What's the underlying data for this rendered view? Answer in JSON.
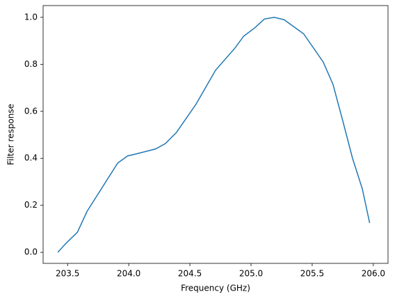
{
  "chart_data": {
    "type": "line",
    "x_label": "Frequency (GHz)",
    "y_label": "Filter response",
    "x": [
      203.42,
      203.49,
      203.58,
      203.66,
      203.91,
      203.99,
      204.07,
      204.22,
      204.3,
      204.39,
      204.55,
      204.71,
      204.87,
      204.94,
      205.03,
      205.11,
      205.19,
      205.27,
      205.43,
      205.59,
      205.67,
      205.75,
      205.83,
      205.91,
      205.97
    ],
    "series": [
      {
        "color": "#1f77b4",
        "values": [
          0.0,
          0.04,
          0.085,
          0.175,
          0.38,
          0.41,
          0.42,
          0.44,
          0.463,
          0.51,
          0.63,
          0.775,
          0.87,
          0.92,
          0.955,
          0.993,
          1.0,
          0.99,
          0.93,
          0.81,
          0.715,
          0.56,
          0.4,
          0.27,
          0.125
        ]
      }
    ],
    "xlim": [
      203.3,
      206.12
    ],
    "ylim": [
      -0.047,
      1.05
    ],
    "xticks": [
      {
        "value": 203.5,
        "label": "203.5"
      },
      {
        "value": 204.0,
        "label": "204.0"
      },
      {
        "value": 204.5,
        "label": "204.5"
      },
      {
        "value": 205.0,
        "label": "205.0"
      },
      {
        "value": 205.5,
        "label": "205.5"
      },
      {
        "value": 206.0,
        "label": "206.0"
      }
    ],
    "yticks": [
      {
        "value": 0,
        "label": "0.0"
      },
      {
        "value": 0.2,
        "label": "0.2"
      },
      {
        "value": 0.4,
        "label": "0.4"
      },
      {
        "value": 0.6,
        "label": "0.6"
      },
      {
        "value": 0.8,
        "label": "0.8"
      },
      {
        "value": 1.0,
        "label": "1.0"
      }
    ],
    "grid": false
  }
}
